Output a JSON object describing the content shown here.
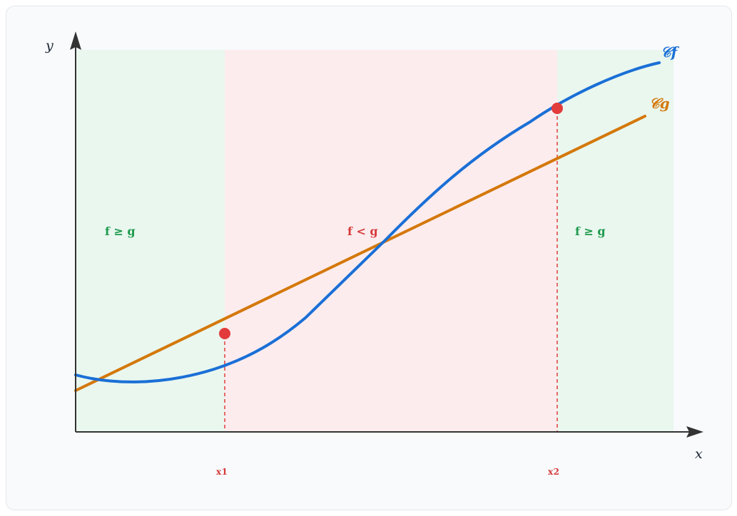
{
  "axes": {
    "x_label": "x",
    "y_label": "y"
  },
  "curves": {
    "f_label": "𝒞f",
    "g_label": "𝒞g"
  },
  "regions": {
    "left_label": "f ≥ g",
    "middle_label": "f < g",
    "right_label": "f ≥ g"
  },
  "points": {
    "x1_label": "x1",
    "x2_label": "x2"
  },
  "colors": {
    "f_curve": "#1a6fd6",
    "g_curve": "#d4780a",
    "ge_region": "#e9f7ef",
    "lt_region": "#fcecee",
    "ge_text": "#1e9a4c",
    "lt_text": "#d63a3a",
    "marker": "#e23b3b",
    "axis": "#333333"
  }
}
